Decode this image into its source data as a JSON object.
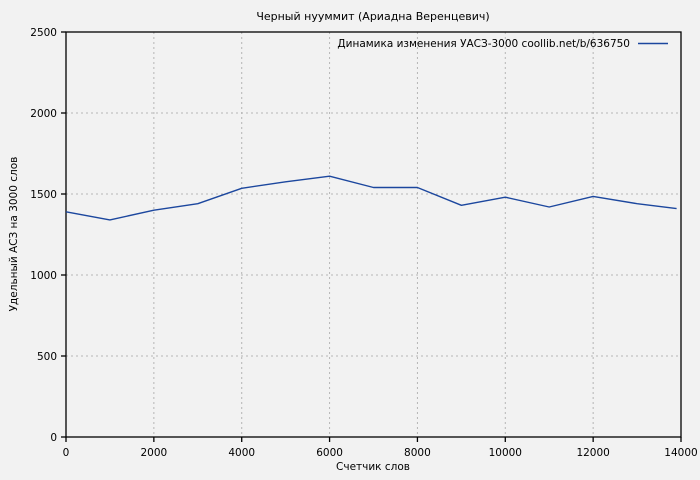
{
  "window": {
    "background": "#f2f2f2"
  },
  "colors": {
    "line": "#1c479e",
    "grid": "#b5b5b5",
    "border": "#000000",
    "text": "#000000",
    "background": "#f2f2f2"
  },
  "chart_data": {
    "type": "line",
    "title": "Черный нууммит (Ариадна Веренцевич)",
    "xlabel": "Счетчик слов",
    "ylabel": "Удельный АСЗ на 3000 слов",
    "grid": true,
    "legend_position": "top-right-inside",
    "xlim": [
      0,
      14000
    ],
    "ylim": [
      0,
      2500
    ],
    "xticks": [
      0,
      2000,
      4000,
      6000,
      8000,
      10000,
      12000,
      14000
    ],
    "yticks": [
      0,
      500,
      1000,
      1500,
      2000,
      2500
    ],
    "series": [
      {
        "name": "Динамика изменения УАСЗ-3000 coollib.net/b/636750",
        "color": "#1c479e",
        "x": [
          0,
          1000,
          2000,
          3000,
          4000,
          5000,
          6000,
          7000,
          8000,
          9000,
          10000,
          11000,
          12000,
          13000,
          13900
        ],
        "y": [
          1390,
          1340,
          1400,
          1440,
          1535,
          1575,
          1610,
          1540,
          1540,
          1430,
          1480,
          1420,
          1485,
          1440,
          1410
        ]
      }
    ]
  }
}
